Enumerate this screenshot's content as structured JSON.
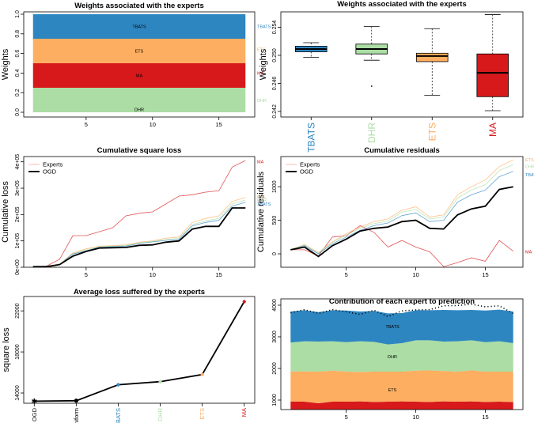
{
  "colors": {
    "TBATS": "#2e86c1",
    "ETS": "#fdae61",
    "MA": "#d7191c",
    "DHR": "#abdda4",
    "OGD": "#000000",
    "Experts": "#fbb4ae"
  },
  "chart_data": [
    {
      "id": "p1",
      "type": "area",
      "title": "Weights associated with the experts",
      "ylabel": "Weights",
      "x": [
        1,
        17
      ],
      "xlim": [
        0.3,
        17.7
      ],
      "ylim": [
        0,
        1
      ],
      "xticks": [
        "5",
        "10",
        "15"
      ],
      "xtick_values": [
        5,
        10,
        15
      ],
      "yticks": [
        "0.0",
        "0.2",
        "0.4",
        "0.6",
        "0.8",
        "1.0"
      ],
      "ytick_values": [
        0,
        0.2,
        0.4,
        0.6,
        0.8,
        1.0
      ],
      "stack_order": [
        "DHR",
        "MA",
        "ETS",
        "TBATS"
      ],
      "series": [
        {
          "name": "DHR",
          "values": [
            0.25,
            0.25
          ]
        },
        {
          "name": "MA",
          "values": [
            0.25,
            0.25
          ]
        },
        {
          "name": "ETS",
          "values": [
            0.25,
            0.25
          ]
        },
        {
          "name": "TBATS",
          "values": [
            0.25,
            0.25
          ]
        }
      ],
      "inner_labels": [
        {
          "name": "TBATS",
          "text": "TBATS",
          "y": 0.875
        },
        {
          "name": "ETS",
          "text": "ETS",
          "y": 0.625
        },
        {
          "name": "MA",
          "text": "MA",
          "y": 0.375
        },
        {
          "name": "DHR",
          "text": "DHR",
          "y": 0.03
        }
      ],
      "right_labels": [
        {
          "name": "TBATS",
          "text": "TBATS",
          "y": 0.875
        },
        {
          "name": "ETS",
          "text": "ETS",
          "y": 0.64
        },
        {
          "name": "MA",
          "text": "MA",
          "y": 0.4
        },
        {
          "name": "DHR",
          "text": "DHR",
          "y": 0.12
        }
      ],
      "grid": false
    },
    {
      "id": "p2",
      "type": "box",
      "title": "Weights associated with the experts",
      "ylabel": "Weights",
      "ylim": [
        0.2412,
        0.2562
      ],
      "yticks": [
        "0.242",
        "0.246",
        "0.250",
        "0.254"
      ],
      "ytick_values": [
        0.242,
        0.246,
        0.25,
        0.254
      ],
      "categories": [
        "TBATS",
        "DHR",
        "ETS",
        "MA"
      ],
      "boxes": [
        {
          "name": "TBATS",
          "min": 0.2497,
          "q1": 0.2505,
          "median": 0.2509,
          "q3": 0.2513,
          "max": 0.2518,
          "outliers": []
        },
        {
          "name": "DHR",
          "min": 0.2493,
          "q1": 0.2502,
          "median": 0.2509,
          "q3": 0.2516,
          "max": 0.2541,
          "outliers": [
            0.2456
          ]
        },
        {
          "name": "ETS",
          "min": 0.2443,
          "q1": 0.2491,
          "median": 0.2499,
          "q3": 0.2503,
          "max": 0.2538,
          "outliers": []
        },
        {
          "name": "MA",
          "min": 0.2421,
          "q1": 0.2441,
          "median": 0.2475,
          "q3": 0.2502,
          "max": 0.2558,
          "outliers": []
        }
      ],
      "grid": false
    },
    {
      "id": "p3",
      "type": "line",
      "title": "Cumulative square loss",
      "ylabel": "Cumulative loss",
      "xlim": [
        0.3,
        17.7
      ],
      "ylim": [
        0,
        420000
      ],
      "xticks": [
        "5",
        "10",
        "15"
      ],
      "xtick_values": [
        5,
        10,
        15
      ],
      "yticks": [
        "0e+00",
        "1e+05",
        "2e+05",
        "3e+05",
        "4e+05"
      ],
      "ytick_values": [
        0,
        100000,
        200000,
        300000,
        400000
      ],
      "legend": {
        "position": "top-left",
        "entries": [
          {
            "name": "Experts",
            "key": "Experts"
          },
          {
            "name": "OGD",
            "key": "OGD"
          }
        ]
      },
      "x": [
        1,
        2,
        3,
        4,
        5,
        6,
        7,
        8,
        9,
        10,
        11,
        12,
        13,
        14,
        15,
        16,
        17
      ],
      "series": [
        {
          "name": "MA",
          "values": [
            2000,
            4000,
            30000,
            120000,
            120000,
            135000,
            150000,
            195000,
            205000,
            210000,
            240000,
            270000,
            275000,
            285000,
            290000,
            380000,
            405000
          ]
        },
        {
          "name": "ETS",
          "values": [
            2000,
            3000,
            12000,
            55000,
            70000,
            80000,
            82000,
            85000,
            95000,
            100000,
            110000,
            115000,
            170000,
            185000,
            195000,
            250000,
            265000
          ]
        },
        {
          "name": "DHR",
          "values": [
            2000,
            3000,
            11000,
            52000,
            66000,
            78000,
            80000,
            82000,
            92000,
            98000,
            105000,
            110000,
            162000,
            176000,
            185000,
            240000,
            255000
          ]
        },
        {
          "name": "TBATS",
          "values": [
            2000,
            3000,
            10000,
            50000,
            62000,
            76000,
            78000,
            80000,
            90000,
            96000,
            102000,
            106000,
            157000,
            170000,
            178000,
            232000,
            247000
          ]
        },
        {
          "name": "OGD",
          "values": [
            2000,
            2000,
            10000,
            42000,
            60000,
            73000,
            74000,
            75000,
            83000,
            85000,
            95000,
            100000,
            145000,
            155000,
            155000,
            225000,
            225000
          ]
        }
      ],
      "right_labels": [
        {
          "name": "MA",
          "text": "MA",
          "y": 400000
        },
        {
          "name": "ETS",
          "text": "ETS",
          "y": 265000
        },
        {
          "name": "DHR",
          "text": "DHR",
          "y": 255000
        },
        {
          "name": "TBATS",
          "text": "TBATS",
          "y": 240000
        }
      ],
      "grid": false
    },
    {
      "id": "p4",
      "type": "line",
      "title": "Cumulative residuals",
      "ylabel": "Cumulative residuals",
      "xlim": [
        0.3,
        17.7
      ],
      "ylim": [
        -200,
        1450
      ],
      "xticks": [
        "5",
        "10",
        "15"
      ],
      "xtick_values": [
        5,
        10,
        15
      ],
      "yticks": [
        "0",
        "500",
        "1000"
      ],
      "ytick_values": [
        0,
        500,
        1000
      ],
      "legend": {
        "position": "top-left",
        "entries": [
          {
            "name": "Experts",
            "key": "Experts"
          },
          {
            "name": "OGD",
            "key": "OGD"
          }
        ]
      },
      "x": [
        1,
        2,
        3,
        4,
        5,
        6,
        7,
        8,
        9,
        10,
        11,
        12,
        13,
        14,
        15,
        16,
        17
      ],
      "series": [
        {
          "name": "MA",
          "values": [
            60,
            60,
            -30,
            250,
            270,
            420,
            320,
            100,
            200,
            100,
            30,
            -190,
            -130,
            -60,
            -110,
            200,
            40
          ]
        },
        {
          "name": "ETS",
          "values": [
            60,
            140,
            20,
            180,
            300,
            400,
            480,
            520,
            650,
            700,
            550,
            580,
            880,
            1000,
            1100,
            1300,
            1400
          ]
        },
        {
          "name": "DHR",
          "values": [
            60,
            130,
            10,
            170,
            280,
            380,
            450,
            490,
            620,
            660,
            520,
            550,
            830,
            950,
            1030,
            1240,
            1330
          ]
        },
        {
          "name": "TBATS",
          "values": [
            60,
            120,
            0,
            150,
            250,
            350,
            420,
            460,
            570,
            610,
            480,
            500,
            770,
            880,
            950,
            1150,
            1230
          ]
        },
        {
          "name": "OGD",
          "values": [
            60,
            100,
            -40,
            120,
            220,
            340,
            380,
            400,
            480,
            500,
            380,
            370,
            580,
            670,
            710,
            960,
            1000
          ]
        }
      ],
      "right_labels": [
        {
          "name": "ETS",
          "text": "ETS",
          "y": 1400
        },
        {
          "name": "DHR",
          "text": "DHR",
          "y": 1300
        },
        {
          "name": "TBATS",
          "text": "TBATS",
          "y": 1180
        },
        {
          "name": "MA",
          "text": "MA",
          "y": 30
        }
      ],
      "grid": false
    },
    {
      "id": "p5",
      "type": "line",
      "title": "Average loss suffered by the experts",
      "ylabel": "square loss",
      "ylim": [
        13000,
        23400
      ],
      "yticks": [
        "14000",
        "18000",
        "22000"
      ],
      "ytick_values": [
        14000,
        18000,
        22000
      ],
      "categories": [
        "OGD",
        "Uniform",
        "TBATS",
        "DHR",
        "ETS",
        "MA"
      ],
      "category_colors": [
        "#000000",
        "#000000",
        "#2e86c1",
        "#abdda4",
        "#fdae61",
        "#d7191c"
      ],
      "values": [
        13200,
        13250,
        14800,
        15100,
        15800,
        22900
      ],
      "grid": false
    },
    {
      "id": "p6",
      "type": "area",
      "title": "Contribution of each expert to prediction",
      "xlim": [
        0.3,
        17.7
      ],
      "ylim": [
        700,
        4200
      ],
      "xticks": [
        "5",
        "10",
        "15"
      ],
      "xtick_values": [
        5,
        10,
        15
      ],
      "yticks": [
        "1000",
        "2000",
        "3000",
        "4000"
      ],
      "ytick_values": [
        1000,
        2000,
        3000,
        4000
      ],
      "x": [
        1,
        2,
        3,
        4,
        5,
        6,
        7,
        8,
        9,
        10,
        11,
        12,
        13,
        14,
        15,
        16,
        17
      ],
      "stack_order": [
        "MA",
        "ETS",
        "DHR",
        "TBATS"
      ],
      "series": [
        {
          "name": "MA",
          "values": [
            950,
            950,
            900,
            950,
            950,
            960,
            940,
            950,
            960,
            950,
            940,
            960,
            950,
            960,
            940,
            950,
            940
          ]
        },
        {
          "name": "ETS",
          "values": [
            950,
            960,
            1000,
            980,
            950,
            930,
            960,
            950,
            940,
            980,
            1000,
            960,
            950,
            980,
            960,
            950,
            960
          ]
        },
        {
          "name": "DHR",
          "values": [
            920,
            950,
            950,
            930,
            930,
            970,
            940,
            860,
            900,
            960,
            950,
            930,
            960,
            950,
            930,
            960,
            900
          ]
        },
        {
          "name": "TBATS",
          "values": [
            980,
            980,
            930,
            980,
            1000,
            940,
            980,
            980,
            950,
            950,
            950,
            1000,
            980,
            960,
            1000,
            1000,
            1000
          ]
        }
      ],
      "total_line": [
        3760,
        3860,
        3740,
        3860,
        3790,
        3710,
        3840,
        3640,
        3820,
        3850,
        3860,
        3980,
        3990,
        4030,
        3950,
        3980,
        3740
      ],
      "inner_labels": [
        {
          "name": "TBATS",
          "text": "TBATS",
          "y": 3330
        },
        {
          "name": "DHR",
          "text": "DHR",
          "y": 2380
        },
        {
          "name": "ETS",
          "text": "ETS",
          "y": 1320
        }
      ],
      "grid": false
    }
  ]
}
